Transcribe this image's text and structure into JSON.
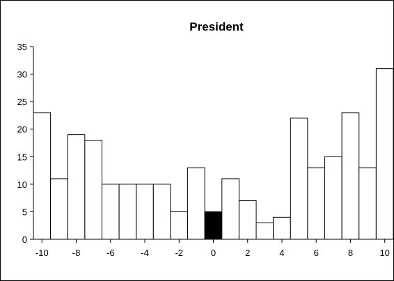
{
  "chart_data": {
    "type": "bar",
    "title": "President",
    "xlabel": "",
    "ylabel": "",
    "ylim": [
      0,
      35
    ],
    "xlim": [
      -10,
      10
    ],
    "y_ticks": [
      0,
      5,
      10,
      15,
      20,
      25,
      30,
      35
    ],
    "x_tick_labels": [
      "-10",
      "-8",
      "-6",
      "-4",
      "-2",
      "0",
      "2",
      "4",
      "6",
      "8",
      "10"
    ],
    "categories": [
      "-10",
      "-9",
      "-8",
      "-7",
      "-6",
      "-5",
      "-4",
      "-3",
      "-2",
      "-1",
      "0",
      "1",
      "2",
      "3",
      "4",
      "5",
      "6",
      "7",
      "8",
      "9",
      "10"
    ],
    "values": [
      23,
      11,
      19,
      18,
      10,
      10,
      10,
      10,
      5,
      13,
      5,
      11,
      7,
      3,
      4,
      22,
      13,
      15,
      23,
      13,
      31
    ],
    "highlighted_category": "0",
    "colors": {
      "bar_fill": "#ffffff",
      "highlight_fill": "#000000",
      "stroke": "#000000"
    },
    "grid": false,
    "legend": "none"
  }
}
